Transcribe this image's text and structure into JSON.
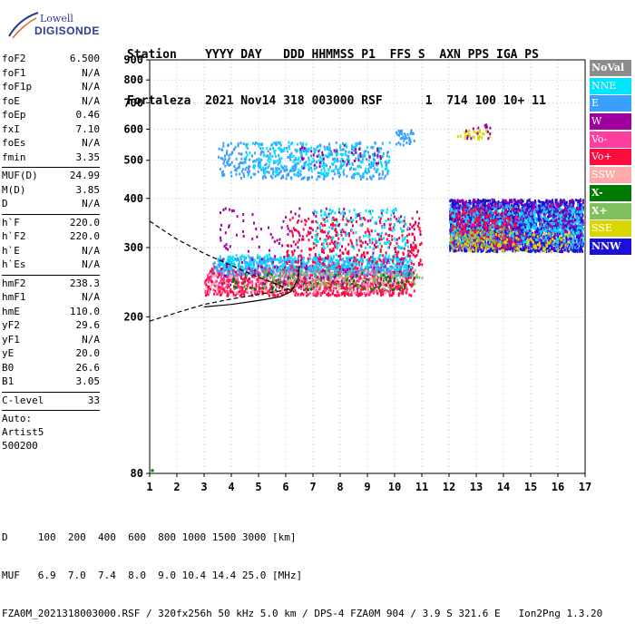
{
  "logo": {
    "top": "Lowell",
    "main": "DIGISONDE"
  },
  "header": {
    "line1": "Station    YYYY DAY   DDD HHMMSS P1  FFS S  AXN PPS IGA PS",
    "line2": "Fortaleza  2021 Nov14 318 003000 RSF      1  714 100 10+ 11"
  },
  "params": [
    {
      "label": "foF2",
      "value": "6.500"
    },
    {
      "label": "foF1",
      "value": "N/A"
    },
    {
      "label": "foF1p",
      "value": "N/A"
    },
    {
      "label": "foE",
      "value": "N/A"
    },
    {
      "label": "foEp",
      "value": "0.46"
    },
    {
      "label": "fxI",
      "value": "7.10"
    },
    {
      "label": "foEs",
      "value": "N/A"
    },
    {
      "label": "fmin",
      "value": "3.35"
    },
    {
      "sep": true
    },
    {
      "label": "MUF(D)",
      "value": "24.99"
    },
    {
      "label": "M(D)",
      "value": "3.85"
    },
    {
      "label": "D",
      "value": "N/A"
    },
    {
      "sep": true
    },
    {
      "label": "h`F",
      "value": "220.0"
    },
    {
      "label": "h`F2",
      "value": "220.0"
    },
    {
      "label": "h`E",
      "value": "N/A"
    },
    {
      "label": "h`Es",
      "value": "N/A"
    },
    {
      "sep": true
    },
    {
      "label": "hmF2",
      "value": "238.3"
    },
    {
      "label": "hmF1",
      "value": "N/A"
    },
    {
      "label": "hmE",
      "value": "110.0"
    },
    {
      "label": "yF2",
      "value": "29.6"
    },
    {
      "label": "yF1",
      "value": "N/A"
    },
    {
      "label": "yE",
      "value": "20.0"
    },
    {
      "label": "B0",
      "value": "26.6"
    },
    {
      "label": "B1",
      "value": "3.05"
    },
    {
      "sep": true
    },
    {
      "label": "C-level",
      "value": "33"
    },
    {
      "sep": true
    },
    {
      "plain": "Auto:"
    },
    {
      "plain": "Artist5"
    },
    {
      "plain": "500200"
    }
  ],
  "legend": [
    {
      "label": "NoVal",
      "color": "#8c8c8c",
      "bold": true
    },
    {
      "label": "NNE",
      "color": "#00e5ff"
    },
    {
      "label": "E",
      "color": "#3aa0ff"
    },
    {
      "label": "W",
      "color": "#a000a0"
    },
    {
      "label": "Vo-",
      "color": "#ff3fa0"
    },
    {
      "label": "Vo+",
      "color": "#ff0a3c"
    },
    {
      "label": "SSW",
      "color": "#ffaaaa"
    },
    {
      "label": "X-",
      "color": "#007a00",
      "bold": true
    },
    {
      "label": "X+",
      "color": "#80c060",
      "bold": true
    },
    {
      "label": "SSE",
      "color": "#d8d800"
    },
    {
      "label": "NNW",
      "color": "#1a10d8",
      "bold": true
    }
  ],
  "footer": {
    "line1": "D     100  200  400  600  800 1000 1500 3000 [km]",
    "line2": "MUF   6.9  7.0  7.4  8.0  9.0 10.4 14.4 25.0 [MHz]",
    "line3": "FZA0M_2021318003000.RSF / 320fx256h 50 kHz 5.0 km / DPS-4 FZA0M 904 / 3.9 S 321.6 E   Ion2Png 1.3.20"
  },
  "chart_data": {
    "type": "scatter",
    "x_ticks": [
      "1",
      "2",
      "3",
      "4",
      "5",
      "6",
      "7",
      "8",
      "9",
      "10",
      "11",
      "12",
      "13",
      "14",
      "15",
      "16",
      "17"
    ],
    "y_ticks": [
      "80",
      "200",
      "300",
      "400",
      "500",
      "600",
      "700",
      "800",
      "900"
    ],
    "xlim": [
      1,
      17
    ],
    "y_scale": "log",
    "ylim": [
      80,
      900
    ],
    "grid": "dotted",
    "clusters": [
      {
        "desc": "low F-trace Vo+",
        "color": "#ff0a3c",
        "x": [
          3.0,
          10.7
        ],
        "y": [
          228,
          270
        ],
        "n": 900
      },
      {
        "desc": "low F-trace Vo-",
        "color": "#ff3fa0",
        "x": [
          3.0,
          10.5
        ],
        "y": [
          230,
          265
        ],
        "n": 250
      },
      {
        "desc": "O-trace E",
        "color": "#3aa0ff",
        "x": [
          3.3,
          10.6
        ],
        "y": [
          255,
          285
        ],
        "n": 600
      },
      {
        "desc": "O-trace NNE",
        "color": "#00e5ff",
        "x": [
          3.5,
          10.6
        ],
        "y": [
          265,
          290
        ],
        "n": 250
      },
      {
        "desc": "X-",
        "color": "#007a00",
        "x": [
          4.0,
          10.5
        ],
        "y": [
          235,
          260
        ],
        "n": 120
      },
      {
        "desc": "X+",
        "color": "#80c060",
        "x": [
          5.0,
          11.0
        ],
        "y": [
          240,
          265
        ],
        "n": 150
      },
      {
        "desc": "SSW",
        "color": "#ffaaaa",
        "x": [
          3.0,
          10.0
        ],
        "y": [
          232,
          262
        ],
        "n": 120
      },
      {
        "desc": "W low",
        "color": "#a000a0",
        "x": [
          3.5,
          11.0
        ],
        "y": [
          240,
          380
        ],
        "n": 250
      },
      {
        "desc": "mid spread Vo+",
        "color": "#ff0a3c",
        "x": [
          6.0,
          11.0
        ],
        "y": [
          270,
          360
        ],
        "n": 300
      },
      {
        "desc": "mid spread NNE",
        "color": "#00e5ff",
        "x": [
          7.0,
          10.5
        ],
        "y": [
          300,
          380
        ],
        "n": 150
      },
      {
        "desc": "second hop E",
        "color": "#3aa0ff",
        "x": [
          3.5,
          9.8
        ],
        "y": [
          450,
          560
        ],
        "n": 450
      },
      {
        "desc": "second hop NNE",
        "color": "#00e5ff",
        "x": [
          4.5,
          9.8
        ],
        "y": [
          460,
          560
        ],
        "n": 200
      },
      {
        "desc": "second hop W",
        "color": "#a000a0",
        "x": [
          6.5,
          9.5
        ],
        "y": [
          480,
          550
        ],
        "n": 40
      },
      {
        "desc": "10MHz group",
        "color": "#3aa0ff",
        "x": [
          10.0,
          10.7
        ],
        "y": [
          550,
          600
        ],
        "n": 40
      },
      {
        "desc": "13MHz group SSE",
        "color": "#d8d800",
        "x": [
          12.3,
          13.5
        ],
        "y": [
          570,
          600
        ],
        "n": 30
      },
      {
        "desc": "13MHz group W",
        "color": "#a000a0",
        "x": [
          12.3,
          13.5
        ],
        "y": [
          570,
          620
        ],
        "n": 15
      },
      {
        "desc": "spread F NNW",
        "color": "#1a10d8",
        "x": [
          12.0,
          16.9
        ],
        "y": [
          295,
          400
        ],
        "n": 2200
      },
      {
        "desc": "spread F E",
        "color": "#3aa0ff",
        "x": [
          12.0,
          16.9
        ],
        "y": [
          300,
          390
        ],
        "n": 500
      },
      {
        "desc": "spread F NNE",
        "color": "#00e5ff",
        "x": [
          12.0,
          16.9
        ],
        "y": [
          310,
          380
        ],
        "n": 350
      },
      {
        "desc": "spread F W",
        "color": "#a000a0",
        "x": [
          12.0,
          16.9
        ],
        "y": [
          300,
          400
        ],
        "n": 350
      },
      {
        "desc": "spread F Vo+",
        "color": "#ff0a3c",
        "x": [
          12.0,
          14.5
        ],
        "y": [
          300,
          380
        ],
        "n": 200
      },
      {
        "desc": "spread F SSE",
        "color": "#d8d800",
        "x": [
          12.0,
          16.5
        ],
        "y": [
          295,
          330
        ],
        "n": 120
      },
      {
        "desc": "spread F X+",
        "color": "#80c060",
        "x": [
          12.0,
          14.0
        ],
        "y": [
          300,
          340
        ],
        "n": 80
      }
    ],
    "curves": [
      {
        "desc": "dashed upper",
        "style": "dashed",
        "x": [
          1.0,
          2.0,
          3.0,
          4.0,
          5.0,
          5.8,
          6.3
        ],
        "y": [
          350,
          315,
          290,
          270,
          252,
          240,
          232
        ]
      },
      {
        "desc": "dashed lower",
        "style": "dashed",
        "x": [
          1.0,
          2.0,
          3.0,
          4.0,
          5.0,
          6.0,
          6.4
        ],
        "y": [
          195,
          205,
          215,
          222,
          228,
          234,
          238
        ]
      },
      {
        "desc": "solid profile",
        "style": "solid",
        "x": [
          3.0,
          4.0,
          5.0,
          5.8,
          6.2,
          6.45,
          6.5
        ],
        "y": [
          212,
          215,
          220,
          225,
          232,
          250,
          270
        ]
      }
    ]
  }
}
